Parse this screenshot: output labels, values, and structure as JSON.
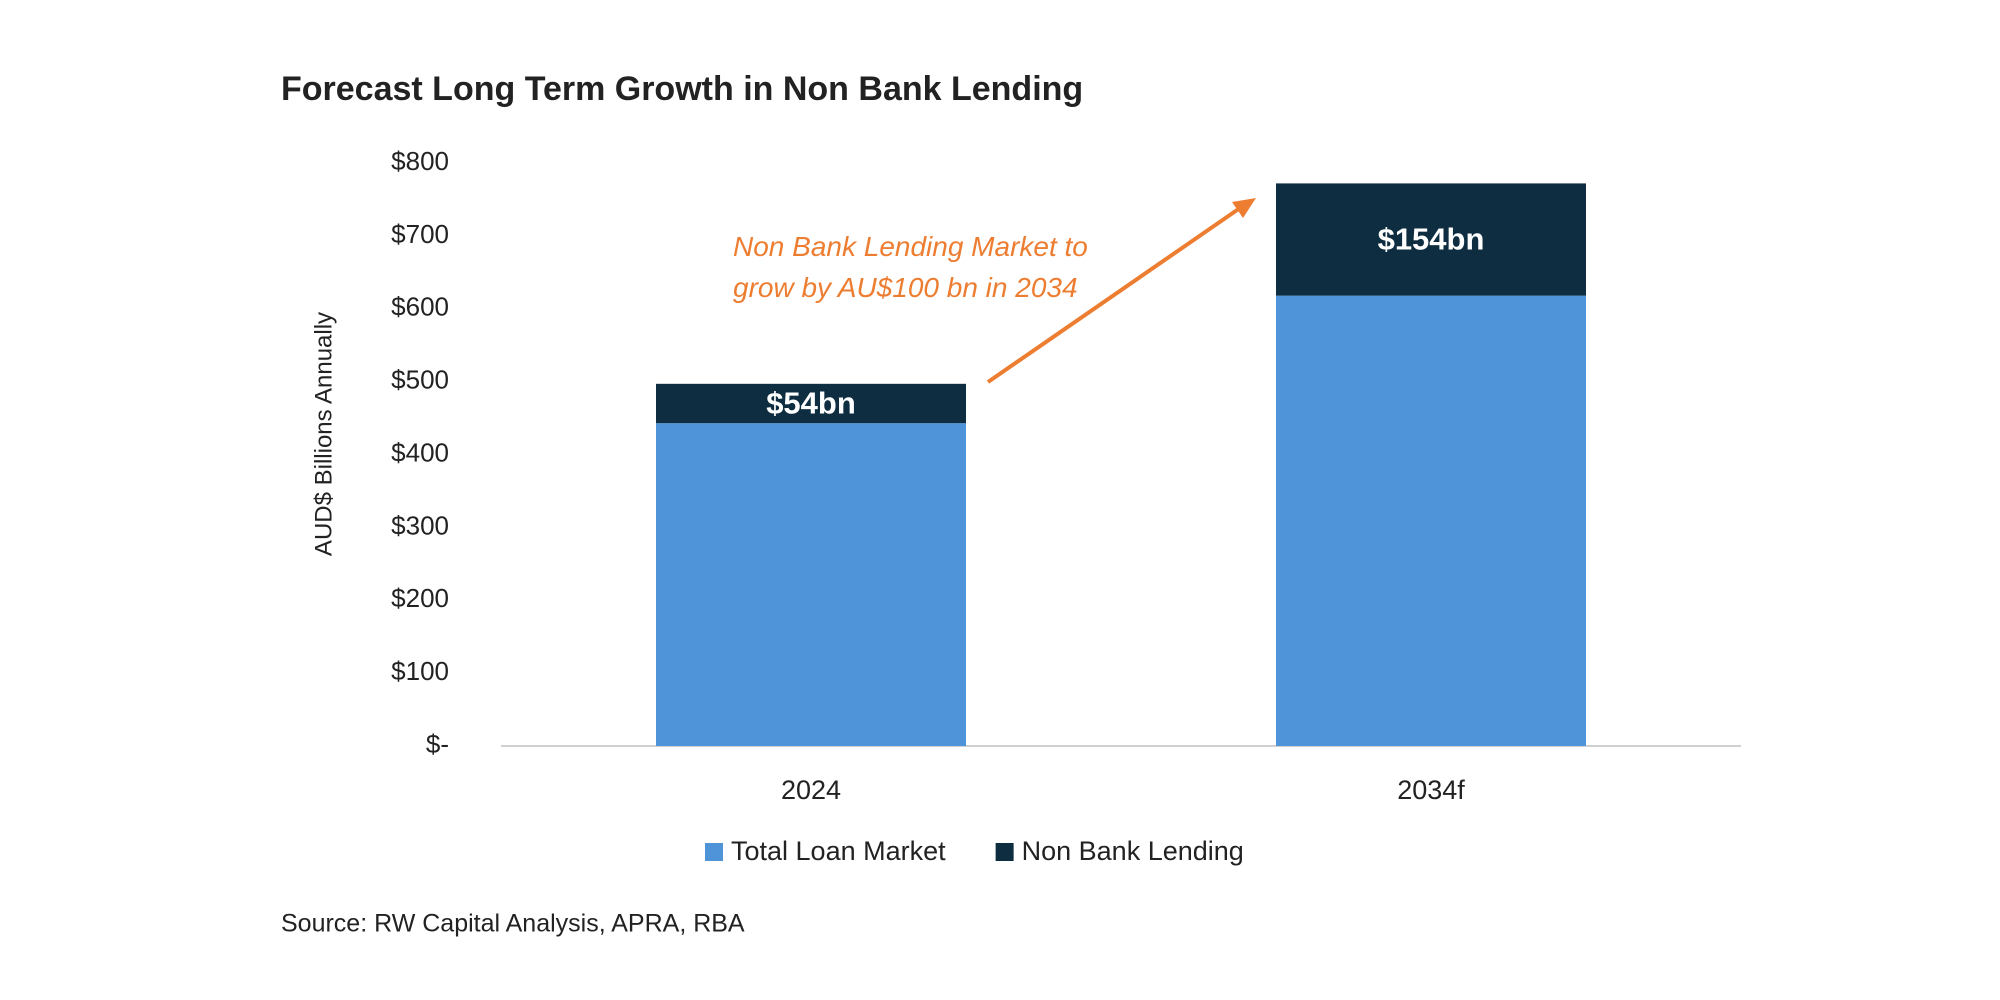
{
  "chart_data": {
    "type": "stacked_bar",
    "title": "Forecast Long Term Growth in Non Bank Lending",
    "y_label": "AUD$ Billions Annually",
    "annotation": "Non Bank Lending Market to grow by AU$100 bn in 2034",
    "source": "Source: RW Capital Analysis, APRA, RBA",
    "categories": [
      "2024",
      "2034f"
    ],
    "series": [
      {
        "name": "Total Loan Market",
        "color": "#4F94D8",
        "values": [
          443,
          618
        ]
      },
      {
        "name": "Non Bank Lending",
        "color": "#0E2D40",
        "values": [
          54,
          154
        ],
        "value_labels": [
          "$54bn",
          "$154bn"
        ]
      }
    ],
    "ylim": [
      0,
      800
    ],
    "yticks": [
      {
        "value": 0,
        "label": "$-"
      },
      {
        "value": 100,
        "label": "$100"
      },
      {
        "value": 200,
        "label": "$200"
      },
      {
        "value": 300,
        "label": "$300"
      },
      {
        "value": 400,
        "label": "$400"
      },
      {
        "value": 500,
        "label": "$500"
      },
      {
        "value": 600,
        "label": "$600"
      },
      {
        "value": 700,
        "label": "$700"
      },
      {
        "value": 800,
        "label": "$800"
      }
    ],
    "legend": "bottom"
  }
}
